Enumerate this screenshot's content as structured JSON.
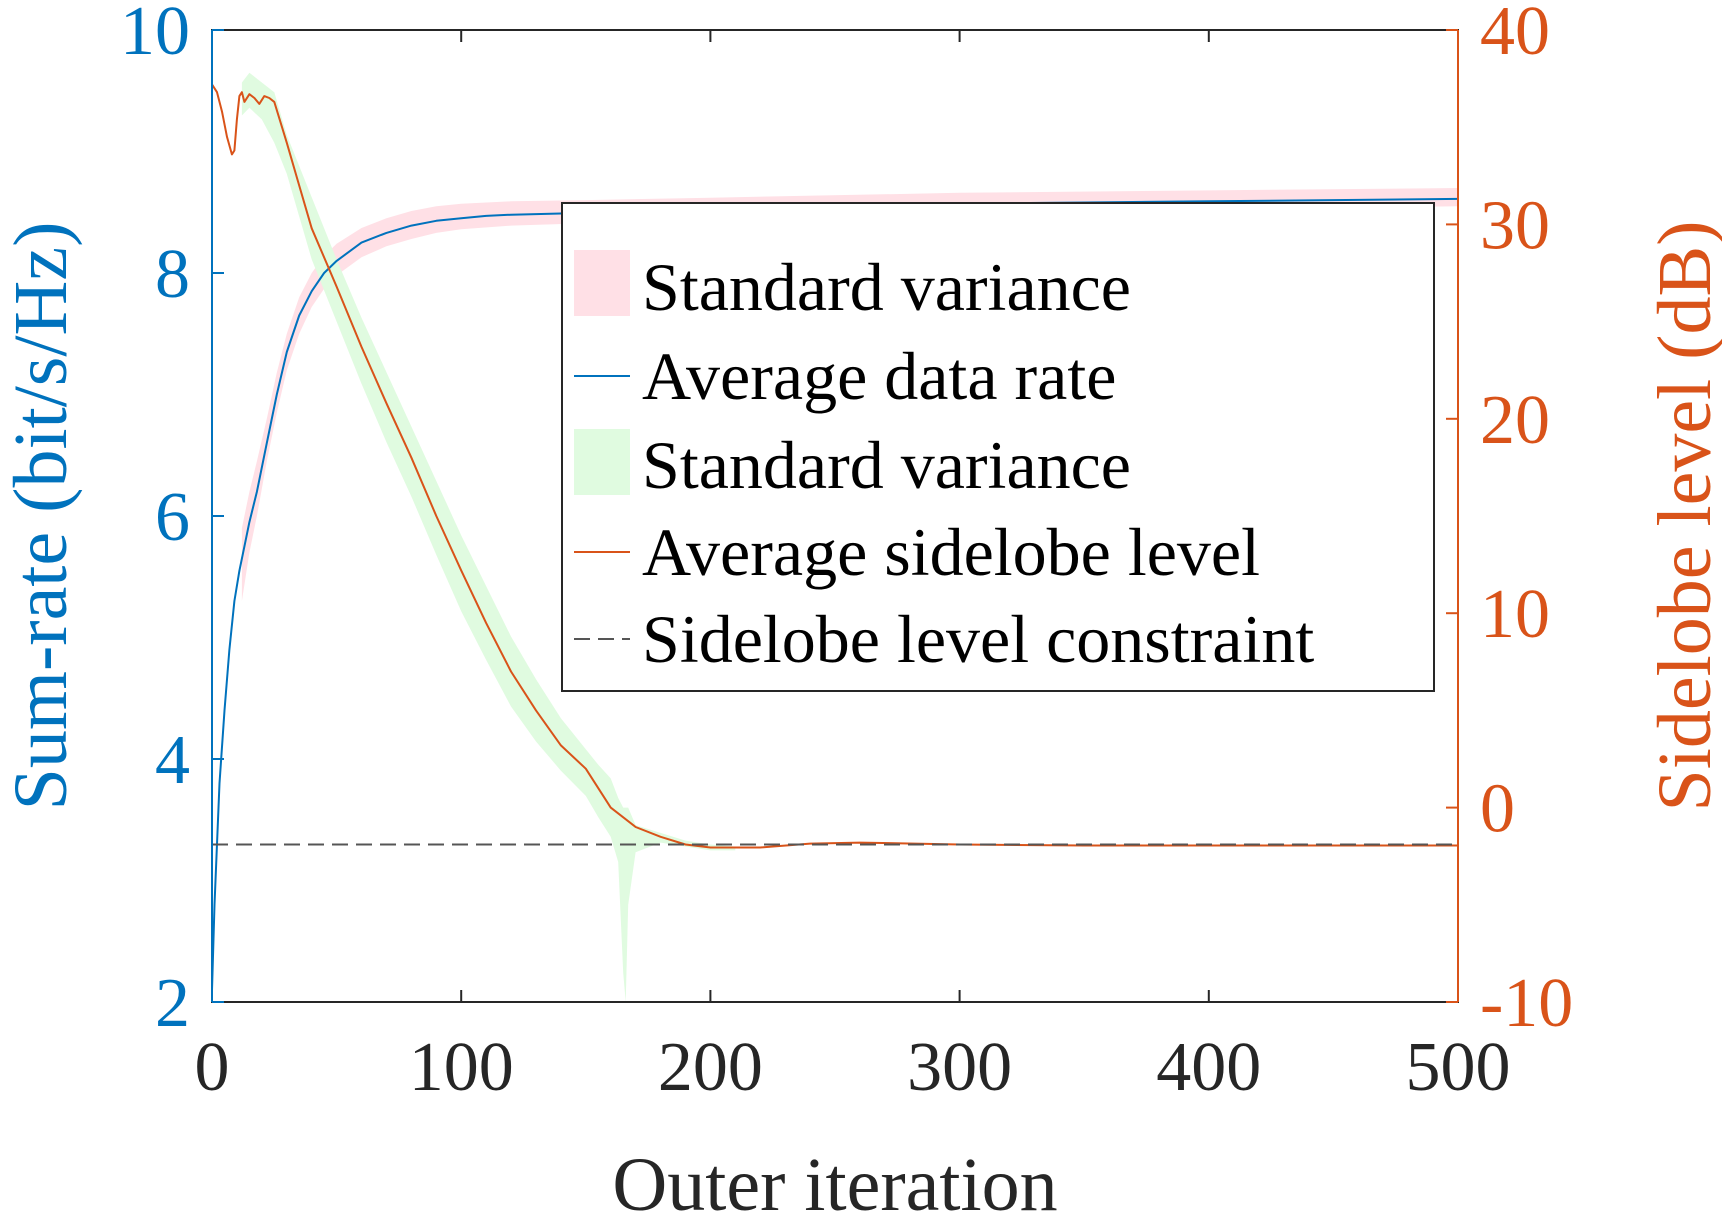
{
  "colors": {
    "left_axis": "#0072BD",
    "right_axis": "#D95319",
    "text": "#262626",
    "rate_band": "#FFE0E6",
    "sll_band": "#E0FBE0",
    "constraint": "#555555"
  },
  "chart_data": {
    "type": "line",
    "xlabel": "Outer iteration",
    "ylabel_left": "Sum-rate (bit/s/Hz)",
    "ylabel_right": "Sidelobe level (dB)",
    "xlim": [
      0,
      500
    ],
    "ylim_left": [
      2,
      10
    ],
    "ylim_right": [
      -10,
      40
    ],
    "x_ticks": [
      "0",
      "100",
      "200",
      "300",
      "400",
      "500"
    ],
    "left_ticks": [
      "2",
      "4",
      "6",
      "8",
      "10"
    ],
    "right_ticks": [
      "-10",
      "0",
      "10",
      "20",
      "30",
      "40"
    ],
    "legend_position": "center-right",
    "legend": [
      "Standard variance",
      "Average data rate",
      "Standard variance",
      "Average sidelobe level",
      "Sidelobe level constraint"
    ],
    "series": [
      {
        "name": "Average data rate",
        "axis": "left",
        "color": "#0072BD",
        "x": [
          0,
          1,
          2,
          3,
          5,
          7,
          9,
          11,
          13,
          15,
          18,
          22,
          26,
          30,
          35,
          40,
          45,
          50,
          60,
          70,
          80,
          90,
          100,
          110,
          120,
          140,
          160,
          180,
          200,
          250,
          300,
          350,
          400,
          450,
          500
        ],
        "y": [
          2.1,
          2.8,
          3.3,
          3.8,
          4.4,
          4.9,
          5.3,
          5.55,
          5.75,
          5.95,
          6.2,
          6.6,
          7.0,
          7.35,
          7.65,
          7.85,
          8.0,
          8.1,
          8.25,
          8.33,
          8.39,
          8.43,
          8.45,
          8.47,
          8.48,
          8.49,
          8.5,
          8.51,
          8.52,
          8.55,
          8.57,
          8.58,
          8.59,
          8.6,
          8.61
        ]
      },
      {
        "name": "Standard variance",
        "axis": "left",
        "band": "rate",
        "x": [
          12,
          15,
          18,
          22,
          26,
          30,
          35,
          40,
          45,
          50,
          60,
          70,
          80,
          90,
          100,
          120,
          150,
          200,
          300,
          400,
          500
        ],
        "lower": [
          5.3,
          5.7,
          6.0,
          6.45,
          6.85,
          7.2,
          7.5,
          7.72,
          7.87,
          7.98,
          8.13,
          8.22,
          8.28,
          8.33,
          8.36,
          8.39,
          8.41,
          8.44,
          8.49,
          8.52,
          8.55
        ],
        "upper": [
          5.9,
          6.2,
          6.45,
          6.8,
          7.18,
          7.5,
          7.8,
          8.0,
          8.14,
          8.24,
          8.37,
          8.45,
          8.51,
          8.55,
          8.57,
          8.59,
          8.6,
          8.62,
          8.66,
          8.68,
          8.7
        ]
      },
      {
        "name": "Average sidelobe level",
        "axis": "right",
        "color": "#D95319",
        "x": [
          0,
          2,
          4,
          6,
          8,
          9,
          10,
          11,
          12,
          13,
          15,
          17,
          19,
          21,
          23,
          25,
          30,
          35,
          40,
          50,
          60,
          70,
          80,
          90,
          100,
          110,
          120,
          130,
          140,
          150,
          160,
          170,
          180,
          190,
          200,
          220,
          240,
          260,
          300,
          350,
          400,
          450,
          500
        ],
        "y": [
          37.2,
          36.8,
          35.8,
          34.5,
          33.6,
          33.8,
          35.4,
          36.6,
          36.8,
          36.3,
          36.7,
          36.5,
          36.2,
          36.6,
          36.5,
          36.3,
          34.2,
          32.0,
          29.8,
          26.8,
          23.7,
          20.8,
          18.0,
          15.0,
          12.2,
          9.5,
          7.0,
          5.0,
          3.2,
          2.0,
          0.0,
          -1.0,
          -1.5,
          -1.9,
          -2.05,
          -2.05,
          -1.85,
          -1.8,
          -1.9,
          -1.95,
          -1.95,
          -1.95,
          -1.95
        ]
      },
      {
        "name": "Standard variance",
        "axis": "right",
        "band": "sll",
        "x": [
          12,
          15,
          20,
          25,
          30,
          40,
          50,
          60,
          70,
          80,
          90,
          100,
          110,
          120,
          130,
          140,
          150,
          155,
          160,
          163,
          165,
          166,
          167,
          170,
          180,
          190,
          200,
          210
        ],
        "lower": [
          35.6,
          36.0,
          35.4,
          34.2,
          32.6,
          28.2,
          25.0,
          21.8,
          18.8,
          16.0,
          13.0,
          10.1,
          7.6,
          5.2,
          3.4,
          1.9,
          0.6,
          -0.5,
          -1.5,
          -2.8,
          -8.5,
          -10.0,
          -5.0,
          -2.3,
          -1.8,
          -2.0,
          -2.2,
          -2.2
        ],
        "upper": [
          37.3,
          37.8,
          37.3,
          36.8,
          34.6,
          31.4,
          28.2,
          25.2,
          22.4,
          19.6,
          16.8,
          14.0,
          11.4,
          8.8,
          6.6,
          4.6,
          3.0,
          2.2,
          1.5,
          0.5,
          0.0,
          0.0,
          0.0,
          -0.9,
          -1.3,
          -1.7,
          -1.9,
          -2.0
        ]
      },
      {
        "name": "Sidelobe level constraint",
        "axis": "right",
        "color": "#555555",
        "dashed": true,
        "x": [
          0,
          500
        ],
        "y": [
          -1.9,
          -1.9
        ]
      }
    ]
  }
}
